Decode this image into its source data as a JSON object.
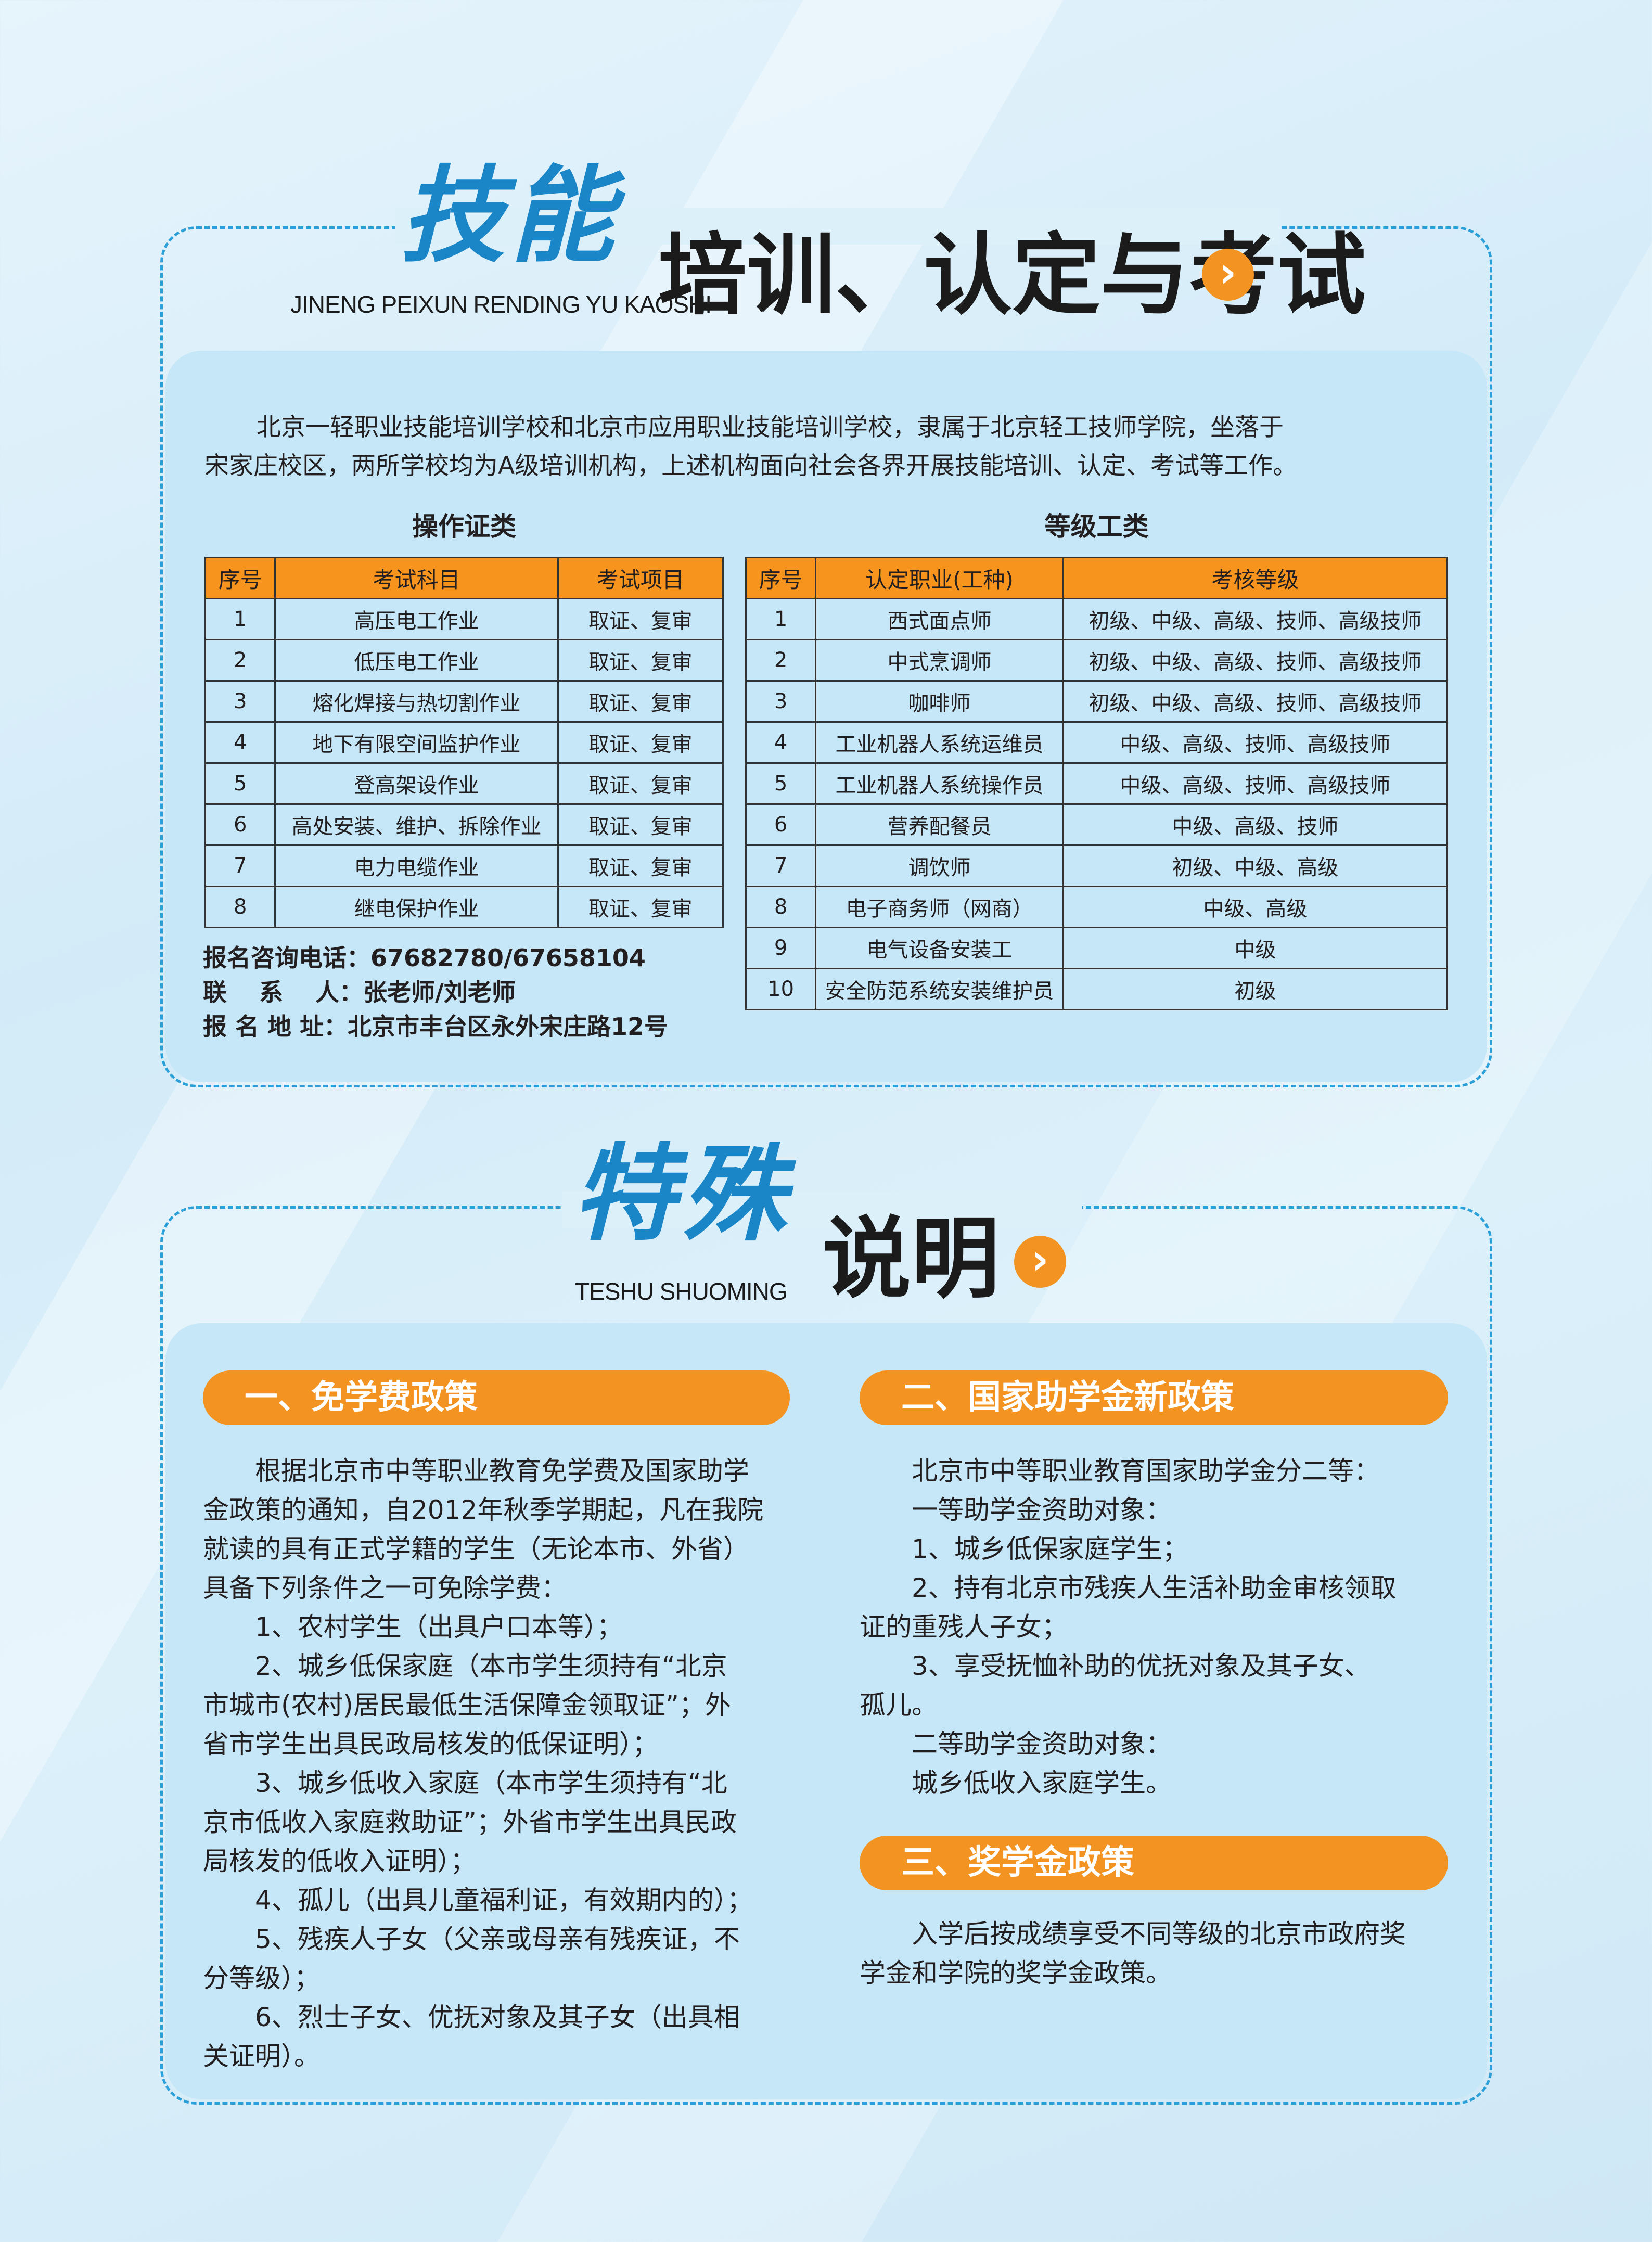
{
  "section1": {
    "title_script": "技能",
    "title_pinyin": "JINENG PEIXUN  RENDING  YU KAOSHI",
    "title_main": "培训、认定与考试",
    "arrow_icon": "chevron-right-circle",
    "intro_lines": [
      "北京一轻职业技能培训学校和北京市应用职业技能培训学校，隶属于北京轻工技师学院，坐落于",
      "宋家庄校区，两所学校均为A级培训机构，上述机构面向社会各界开展技能培训、认定、考试等工作。"
    ],
    "left_table": {
      "caption": "操作证类",
      "headers": [
        "序号",
        "考试科目",
        "考试项目"
      ],
      "rows": [
        [
          "1",
          "高压电工作业",
          "取证、复审"
        ],
        [
          "2",
          "低压电工作业",
          "取证、复审"
        ],
        [
          "3",
          "熔化焊接与热切割作业",
          "取证、复审"
        ],
        [
          "4",
          "地下有限空间监护作业",
          "取证、复审"
        ],
        [
          "5",
          "登高架设作业",
          "取证、复审"
        ],
        [
          "6",
          "高处安装、维护、拆除作业",
          "取证、复审"
        ],
        [
          "7",
          "电力电缆作业",
          "取证、复审"
        ],
        [
          "8",
          "继电保护作业",
          "取证、复审"
        ]
      ]
    },
    "right_table": {
      "caption": "等级工类",
      "headers": [
        "序号",
        "认定职业(工种)",
        "考核等级"
      ],
      "rows": [
        [
          "1",
          "西式面点师",
          "初级、中级、高级、技师、高级技师"
        ],
        [
          "2",
          "中式烹调师",
          "初级、中级、高级、技师、高级技师"
        ],
        [
          "3",
          "咖啡师",
          "初级、中级、高级、技师、高级技师"
        ],
        [
          "4",
          "工业机器人系统运维员",
          "中级、高级、技师、高级技师"
        ],
        [
          "5",
          "工业机器人系统操作员",
          "中级、高级、技师、高级技师"
        ],
        [
          "6",
          "营养配餐员",
          "中级、高级、技师"
        ],
        [
          "7",
          "调饮师",
          "初级、中级、高级"
        ],
        [
          "8",
          "电子商务师（网商）",
          "中级、高级"
        ],
        [
          "9",
          "电气设备安装工",
          "中级"
        ],
        [
          "10",
          "安全防范系统安装维护员",
          "初级"
        ]
      ]
    },
    "contact": [
      {
        "label": "报名咨询电话：",
        "value": "67682780/67658104"
      },
      {
        "label": "联　 系　 人：",
        "value": "张老师/刘老师"
      },
      {
        "label": "报 名 地 址：",
        "value": "北京市丰台区永外宋庄路12号"
      }
    ]
  },
  "section2": {
    "title_script": "特殊",
    "title_pinyin": "TESHU SHUOMING",
    "title_main": "说明",
    "arrow_icon": "chevron-right-circle",
    "policy1": {
      "title": "一、免学费政策",
      "lines": [
        {
          "t": "根据北京市中等职业教育免学费及国家助学",
          "indent": true
        },
        {
          "t": "金政策的通知，自2012年秋季学期起，凡在我院",
          "indent": false
        },
        {
          "t": "就读的具有正式学籍的学生（无论本市、外省）",
          "indent": false
        },
        {
          "t": "具备下列条件之一可免除学费：",
          "indent": false
        },
        {
          "t": "1、农村学生（出具户口本等）；",
          "indent": true
        },
        {
          "t": "2、城乡低保家庭（本市学生须持有“北京",
          "indent": true
        },
        {
          "t": "市城市(农村)居民最低生活保障金领取证”；外",
          "indent": false
        },
        {
          "t": "省市学生出具民政局核发的低保证明）；",
          "indent": false
        },
        {
          "t": "3、城乡低收入家庭（本市学生须持有“北",
          "indent": true
        },
        {
          "t": "京市低收入家庭救助证”；外省市学生出具民政",
          "indent": false
        },
        {
          "t": "局核发的低收入证明）；",
          "indent": false
        },
        {
          "t": "4、孤儿（出具儿童福利证，有效期内的）；",
          "indent": true
        },
        {
          "t": "5、残疾人子女（父亲或母亲有残疾证，不",
          "indent": true
        },
        {
          "t": "分等级）；",
          "indent": false
        },
        {
          "t": "6、烈士子女、优抚对象及其子女（出具相",
          "indent": true
        },
        {
          "t": "关证明）。",
          "indent": false
        }
      ]
    },
    "policy2": {
      "title": "二、国家助学金新政策",
      "lines": [
        {
          "t": "北京市中等职业教育国家助学金分二等：",
          "indent": true
        },
        {
          "t": "一等助学金资助对象：",
          "indent": true
        },
        {
          "t": "1、城乡低保家庭学生；",
          "indent": true
        },
        {
          "t": "2、持有北京市残疾人生活补助金审核领取",
          "indent": true
        },
        {
          "t": "证的重残人子女；",
          "indent": false
        },
        {
          "t": "3、享受抚恤补助的优抚对象及其子女、",
          "indent": true
        },
        {
          "t": "孤儿。",
          "indent": false
        },
        {
          "t": "二等助学金资助对象：",
          "indent": true
        },
        {
          "t": "城乡低收入家庭学生。",
          "indent": true
        }
      ]
    },
    "policy3": {
      "title": "三、奖学金政策",
      "lines": [
        {
          "t": "入学后按成绩享受不同等级的北京市政府奖",
          "indent": true
        },
        {
          "t": "学金和学院的奖学金政策。",
          "indent": false
        }
      ]
    }
  },
  "colors": {
    "accent_orange": "#f39321",
    "title_blue": "#1a86c8",
    "panel": "#c6e7f8",
    "border_dash": "#2a9fd8"
  }
}
